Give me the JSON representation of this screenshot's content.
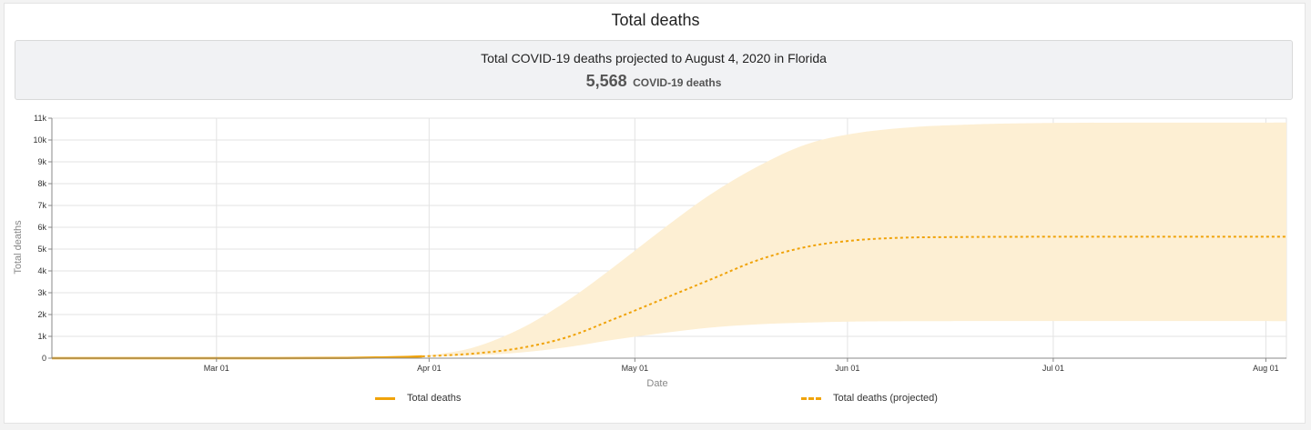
{
  "page": {
    "title": "Total deaths",
    "summary": {
      "headline": "Total COVID-19 deaths projected to August 4, 2020 in Florida",
      "value": "5,568",
      "unit": "COVID-19 deaths"
    }
  },
  "colors": {
    "line": "#f0a30a",
    "band": "#fdefd3",
    "grid": "#e3e3e3",
    "axis": "#888888"
  },
  "legend": {
    "items": [
      {
        "label": "Total deaths",
        "style": "solid"
      },
      {
        "label": "Total deaths (projected)",
        "style": "dashed"
      }
    ]
  },
  "chart_data": {
    "type": "line",
    "title": "Total deaths",
    "xlabel": "Date",
    "ylabel": "Total deaths",
    "x_type": "date",
    "xlim": [
      "2020-02-06",
      "2020-08-04"
    ],
    "ylim": [
      0,
      11000
    ],
    "grid": true,
    "legend_position": "bottom",
    "x_ticks": [
      {
        "date": "2020-03-01",
        "label": "Mar 01"
      },
      {
        "date": "2020-04-01",
        "label": "Apr 01"
      },
      {
        "date": "2020-05-01",
        "label": "May 01"
      },
      {
        "date": "2020-06-01",
        "label": "Jun 01"
      },
      {
        "date": "2020-07-01",
        "label": "Jul 01"
      },
      {
        "date": "2020-08-01",
        "label": "Aug 01"
      }
    ],
    "y_ticks": [
      {
        "value": 0,
        "label": "0"
      },
      {
        "value": 1000,
        "label": "1k"
      },
      {
        "value": 2000,
        "label": "2k"
      },
      {
        "value": 3000,
        "label": "3k"
      },
      {
        "value": 4000,
        "label": "4k"
      },
      {
        "value": 5000,
        "label": "5k"
      },
      {
        "value": 6000,
        "label": "6k"
      },
      {
        "value": 7000,
        "label": "7k"
      },
      {
        "value": 8000,
        "label": "8k"
      },
      {
        "value": 9000,
        "label": "9k"
      },
      {
        "value": 10000,
        "label": "10k"
      },
      {
        "value": 11000,
        "label": "11k"
      }
    ],
    "series": [
      {
        "name": "Total deaths",
        "style": "solid",
        "points": [
          {
            "date": "2020-02-06",
            "y": 0
          },
          {
            "date": "2020-03-01",
            "y": 0
          },
          {
            "date": "2020-03-10",
            "y": 2
          },
          {
            "date": "2020-03-20",
            "y": 12
          },
          {
            "date": "2020-03-25",
            "y": 35
          },
          {
            "date": "2020-03-29",
            "y": 60
          },
          {
            "date": "2020-03-31",
            "y": 85
          }
        ]
      },
      {
        "name": "Total deaths (projected)",
        "style": "dashed",
        "points": [
          {
            "date": "2020-03-31",
            "y": 85
          },
          {
            "date": "2020-04-07",
            "y": 200
          },
          {
            "date": "2020-04-14",
            "y": 450
          },
          {
            "date": "2020-04-21",
            "y": 950
          },
          {
            "date": "2020-04-28",
            "y": 1800
          },
          {
            "date": "2020-05-05",
            "y": 2700
          },
          {
            "date": "2020-05-12",
            "y": 3600
          },
          {
            "date": "2020-05-19",
            "y": 4500
          },
          {
            "date": "2020-05-26",
            "y": 5100
          },
          {
            "date": "2020-06-02",
            "y": 5400
          },
          {
            "date": "2020-06-09",
            "y": 5520
          },
          {
            "date": "2020-06-16",
            "y": 5550
          },
          {
            "date": "2020-06-30",
            "y": 5565
          },
          {
            "date": "2020-08-04",
            "y": 5568
          }
        ]
      }
    ],
    "uncertainty_band": {
      "upper": [
        {
          "date": "2020-03-31",
          "y": 90
        },
        {
          "date": "2020-04-07",
          "y": 450
        },
        {
          "date": "2020-04-14",
          "y": 1300
        },
        {
          "date": "2020-04-21",
          "y": 2600
        },
        {
          "date": "2020-04-28",
          "y": 4200
        },
        {
          "date": "2020-05-05",
          "y": 5900
        },
        {
          "date": "2020-05-12",
          "y": 7500
        },
        {
          "date": "2020-05-19",
          "y": 8800
        },
        {
          "date": "2020-05-26",
          "y": 9800
        },
        {
          "date": "2020-06-02",
          "y": 10300
        },
        {
          "date": "2020-06-09",
          "y": 10550
        },
        {
          "date": "2020-06-16",
          "y": 10680
        },
        {
          "date": "2020-06-30",
          "y": 10780
        },
        {
          "date": "2020-08-04",
          "y": 10800
        }
      ],
      "lower": [
        {
          "date": "2020-03-31",
          "y": 80
        },
        {
          "date": "2020-04-07",
          "y": 120
        },
        {
          "date": "2020-04-14",
          "y": 250
        },
        {
          "date": "2020-04-21",
          "y": 500
        },
        {
          "date": "2020-04-28",
          "y": 850
        },
        {
          "date": "2020-05-05",
          "y": 1150
        },
        {
          "date": "2020-05-12",
          "y": 1400
        },
        {
          "date": "2020-05-19",
          "y": 1550
        },
        {
          "date": "2020-05-26",
          "y": 1630
        },
        {
          "date": "2020-06-02",
          "y": 1680
        },
        {
          "date": "2020-06-16",
          "y": 1700
        },
        {
          "date": "2020-08-04",
          "y": 1700
        }
      ]
    }
  }
}
